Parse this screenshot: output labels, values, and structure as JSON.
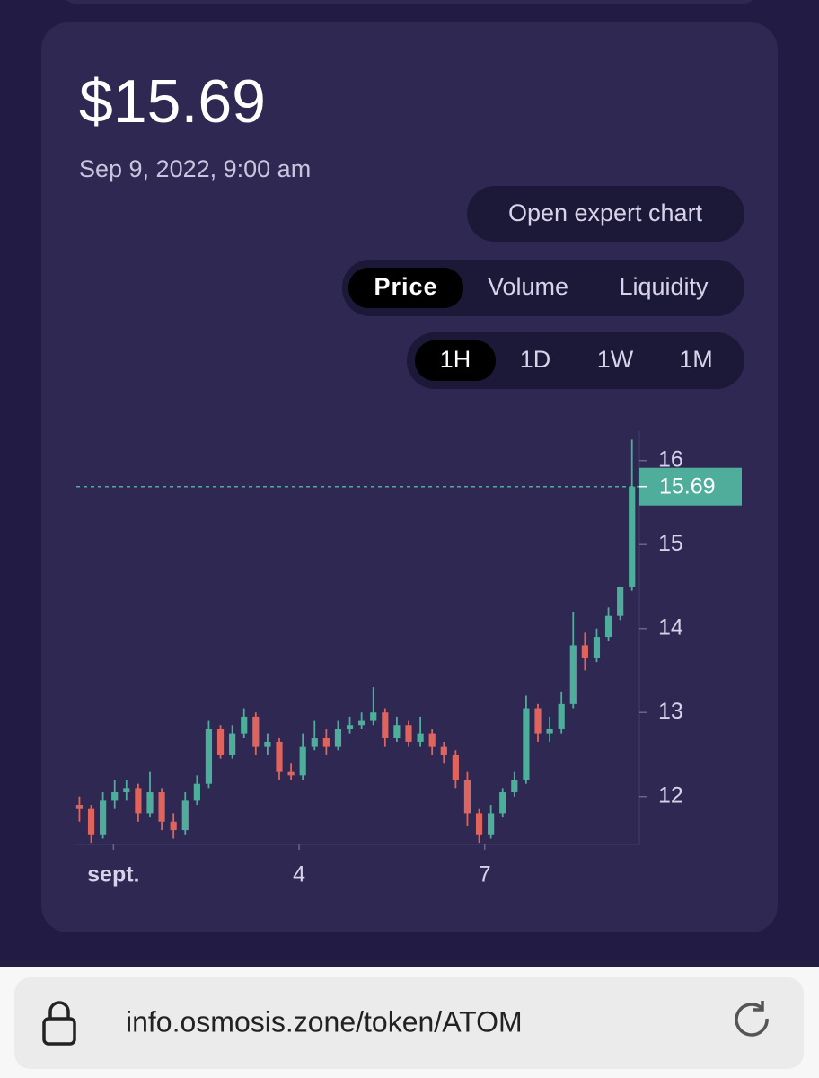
{
  "header": {
    "price": "$15.69",
    "date": "Sep 9, 2022, 9:00 am"
  },
  "buttons": {
    "expert": "Open expert chart"
  },
  "tabs": {
    "metric": [
      "Price",
      "Volume",
      "Liquidity"
    ],
    "range": [
      "1H",
      "1D",
      "1W",
      "1M"
    ]
  },
  "chart_data": {
    "type": "candlestick",
    "x": [
      0.45,
      0.64,
      0.83,
      1.02,
      1.21,
      1.4,
      1.59,
      1.78,
      1.97,
      2.16,
      2.35,
      2.54,
      2.73,
      2.92,
      3.11,
      3.3,
      3.49,
      3.68,
      3.87,
      4.06,
      4.25,
      4.44,
      4.63,
      4.82,
      5.01,
      5.2,
      5.39,
      5.58,
      5.77,
      5.96,
      6.15,
      6.34,
      6.53,
      6.72,
      6.91,
      7.1,
      7.29,
      7.48,
      7.67,
      7.86,
      8.05,
      8.24,
      8.43,
      8.62,
      8.81,
      9.0,
      9.19,
      9.38
    ],
    "open": [
      11.9,
      11.85,
      11.55,
      11.95,
      12.05,
      12.1,
      11.8,
      12.05,
      11.7,
      11.6,
      11.95,
      12.15,
      12.8,
      12.5,
      12.75,
      12.95,
      12.6,
      12.65,
      12.3,
      12.25,
      12.6,
      12.7,
      12.6,
      12.8,
      12.85,
      12.9,
      13.0,
      12.7,
      12.85,
      12.65,
      12.75,
      12.6,
      12.5,
      12.2,
      11.8,
      11.55,
      11.8,
      12.05,
      12.2,
      13.05,
      12.75,
      12.8,
      13.1,
      13.8,
      13.65,
      13.9,
      14.15,
      14.5
    ],
    "high": [
      12.0,
      11.9,
      12.05,
      12.2,
      12.2,
      12.15,
      12.3,
      12.1,
      11.8,
      12.05,
      12.25,
      12.9,
      12.85,
      12.85,
      13.05,
      13.0,
      12.75,
      12.7,
      12.4,
      12.75,
      12.9,
      12.8,
      12.9,
      12.95,
      13.0,
      13.3,
      13.05,
      12.95,
      12.9,
      12.95,
      12.8,
      12.65,
      12.55,
      12.3,
      11.85,
      11.9,
      12.1,
      12.3,
      13.2,
      13.1,
      12.95,
      13.25,
      14.2,
      13.95,
      14.0,
      14.25,
      14.5,
      16.25
    ],
    "low": [
      11.7,
      11.45,
      11.5,
      11.85,
      11.95,
      11.7,
      11.75,
      11.6,
      11.5,
      11.55,
      11.9,
      12.1,
      12.45,
      12.45,
      12.7,
      12.5,
      12.5,
      12.2,
      12.2,
      12.2,
      12.55,
      12.5,
      12.55,
      12.75,
      12.8,
      12.85,
      12.6,
      12.65,
      12.6,
      12.6,
      12.5,
      12.4,
      12.1,
      11.65,
      11.45,
      11.5,
      11.75,
      12.0,
      12.15,
      12.65,
      12.65,
      12.75,
      13.05,
      13.5,
      13.6,
      13.85,
      14.1,
      14.45
    ],
    "close": [
      11.85,
      11.55,
      11.95,
      12.05,
      12.1,
      11.8,
      12.05,
      11.7,
      11.6,
      11.95,
      12.15,
      12.8,
      12.5,
      12.75,
      12.95,
      12.6,
      12.65,
      12.3,
      12.25,
      12.6,
      12.7,
      12.6,
      12.8,
      12.85,
      12.9,
      13.0,
      12.7,
      12.85,
      12.65,
      12.75,
      12.6,
      12.5,
      12.2,
      11.8,
      11.55,
      11.8,
      12.05,
      12.2,
      13.05,
      12.75,
      12.8,
      13.1,
      13.8,
      13.65,
      13.9,
      14.15,
      14.5,
      15.69
    ],
    "up_color": "#4fae9b",
    "down_color": "#e0645e",
    "xlim": [
      0.4,
      9.5
    ],
    "xticks": [
      {
        "value": 1,
        "label": "sept."
      },
      4,
      7
    ],
    "ylim": [
      11.43,
      16.35
    ],
    "yticks": [
      12,
      13,
      14,
      15,
      16
    ],
    "last_price": 15.69
  },
  "browser": {
    "url": "info.osmosis.zone/token/ATOM"
  }
}
